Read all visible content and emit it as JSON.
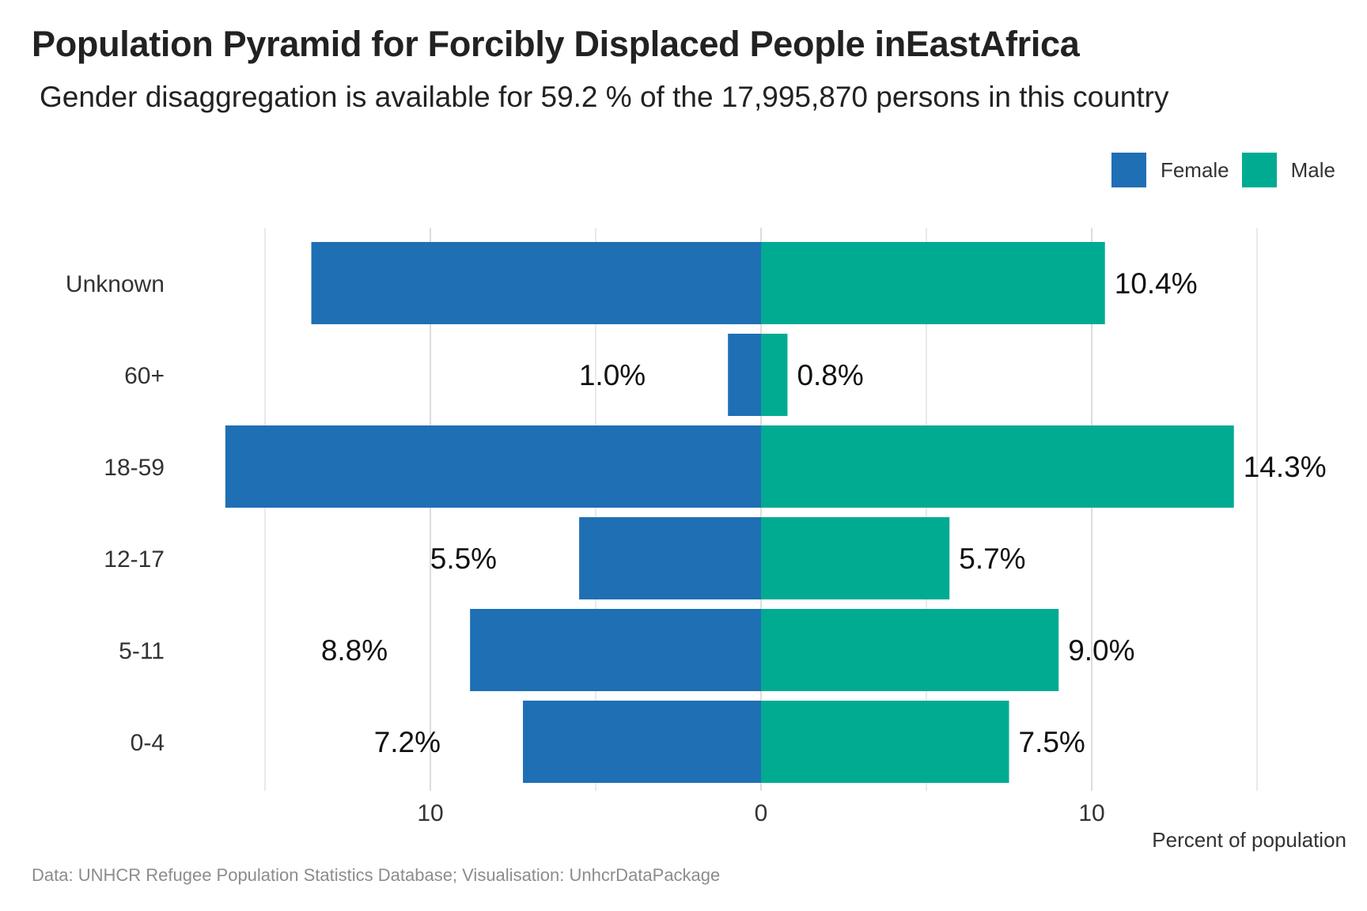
{
  "title": "Population Pyramid for Forcibly Displaced People inEastAfrica",
  "subtitle": "Gender disaggregation is available for 59.2 % of the 17,995,870 persons in this country",
  "caption": "Data: UNHCR Refugee Population Statistics Database; Visualisation: UnhcrDataPackage",
  "colors": {
    "female": "#1F6FB5",
    "male": "#00AB92",
    "grid": "#d4d4d4"
  },
  "chart_data": {
    "type": "bar",
    "orientation": "horizontal",
    "layout": "population-pyramid",
    "categories": [
      "Unknown",
      "60+",
      "18-59",
      "12-17",
      "5-11",
      "0-4"
    ],
    "series": [
      {
        "name": "Female",
        "values": [
          13.6,
          1.0,
          16.2,
          5.5,
          8.8,
          7.2
        ],
        "labels": [
          "",
          "1.0%",
          "",
          "5.5%",
          "8.8%",
          "7.2%"
        ]
      },
      {
        "name": "Male",
        "values": [
          10.4,
          0.8,
          14.3,
          5.7,
          9.0,
          7.5
        ],
        "labels": [
          "10.4%",
          "0.8%",
          "14.3%",
          "5.7%",
          "9.0%",
          "7.5%"
        ]
      }
    ],
    "xlabel": "Percent of population",
    "xlim": [
      -16.5,
      15.0
    ],
    "xticks": [
      -10,
      0,
      10
    ],
    "xtick_labels": [
      "10",
      "0",
      "10"
    ],
    "grid": true,
    "legend": "top-right"
  }
}
